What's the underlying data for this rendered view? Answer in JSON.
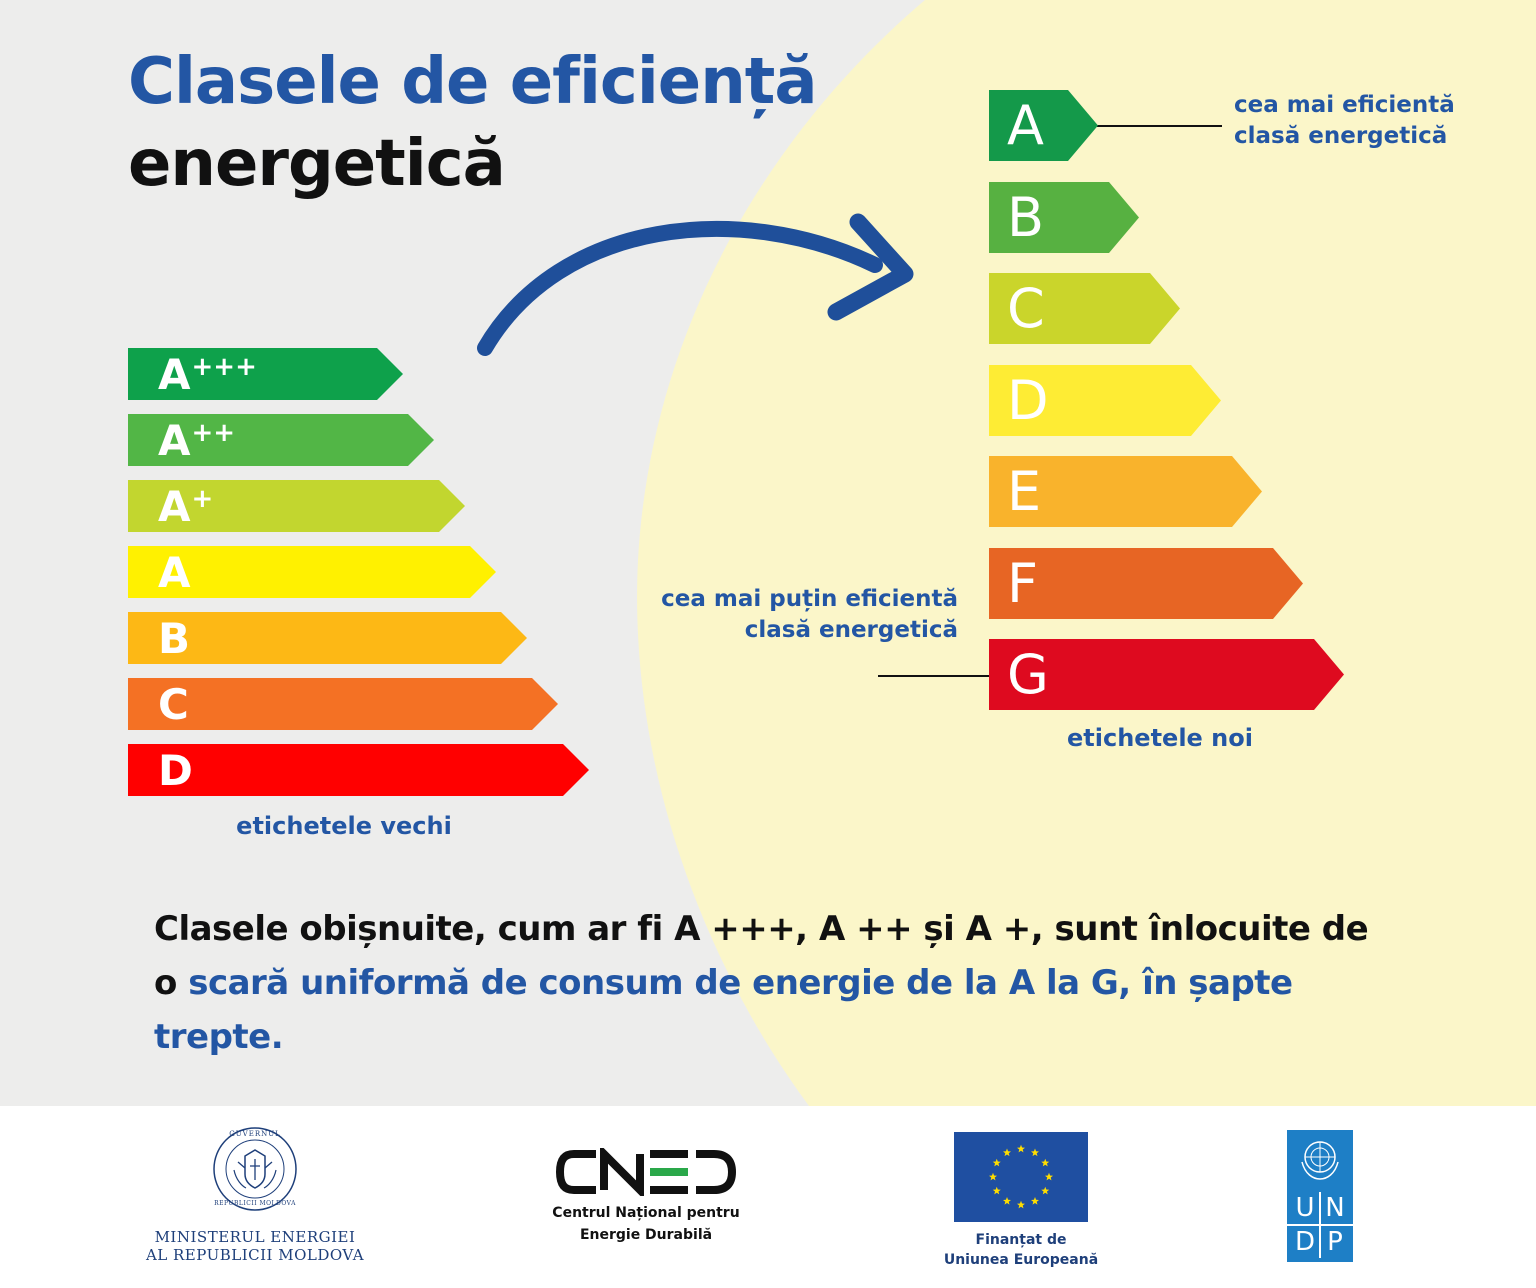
{
  "title": {
    "line1": "Clasele de eficiență",
    "line2": "energetică"
  },
  "old_labels": {
    "caption": "etichetele vechi",
    "items": [
      {
        "letter": "A",
        "sup": "+++",
        "color": "#0ea14b"
      },
      {
        "letter": "A",
        "sup": "++",
        "color": "#52b646"
      },
      {
        "letter": "A",
        "sup": "+",
        "color": "#c2d62f"
      },
      {
        "letter": "A",
        "sup": "",
        "color": "#fff100"
      },
      {
        "letter": "B",
        "sup": "",
        "color": "#fdb815"
      },
      {
        "letter": "C",
        "sup": "",
        "color": "#f47124"
      },
      {
        "letter": "D",
        "sup": "",
        "color": "#ff0000"
      }
    ]
  },
  "new_labels": {
    "caption": "etichetele noi",
    "items": [
      {
        "letter": "A",
        "color": "#14994a"
      },
      {
        "letter": "B",
        "color": "#57b141"
      },
      {
        "letter": "C",
        "color": "#cad52b"
      },
      {
        "letter": "D",
        "color": "#feec34"
      },
      {
        "letter": "E",
        "color": "#f9b32c"
      },
      {
        "letter": "F",
        "color": "#e76524"
      },
      {
        "letter": "G",
        "color": "#de0a1f"
      }
    ],
    "annotation_top": {
      "line1": "cea mai eficientă",
      "line2": "clasă energetică"
    },
    "annotation_bottom": {
      "line1": "cea mai puțin eficientă",
      "line2": "clasă energetică"
    }
  },
  "body": {
    "text_black": "Clasele obișnuite, cum ar fi A +++, A ++ și A +, sunt înlocuite de o",
    "text_blue": "scară uniformă de consum de energie de la A la G, în șapte trepte."
  },
  "footer": {
    "ministry": {
      "line1": "MINISTERUL ENERGIEI",
      "line2": "AL REPUBLICII MOLDOVA",
      "seal_top": "GUVERNUL",
      "seal_bottom": "REPUBLICII MOLDOVA"
    },
    "cned": {
      "logo": "CNED",
      "line1": "Centrul Național pentru",
      "line2": "Energie Durabilă"
    },
    "eu": {
      "line1": "Finanțat de",
      "line2": "Uniunea Europeană",
      "flag_color": "#1f4fa1",
      "star_color": "#ffdd00"
    },
    "undp": {
      "letters": [
        "U",
        "N",
        "D",
        "P"
      ],
      "color": "#1e7fc6"
    }
  },
  "colors": {
    "background_left": "#ededec",
    "background_right": "#fbf6c9",
    "accent_blue": "#2356a4",
    "arrow_blue": "#1f4f9a"
  }
}
